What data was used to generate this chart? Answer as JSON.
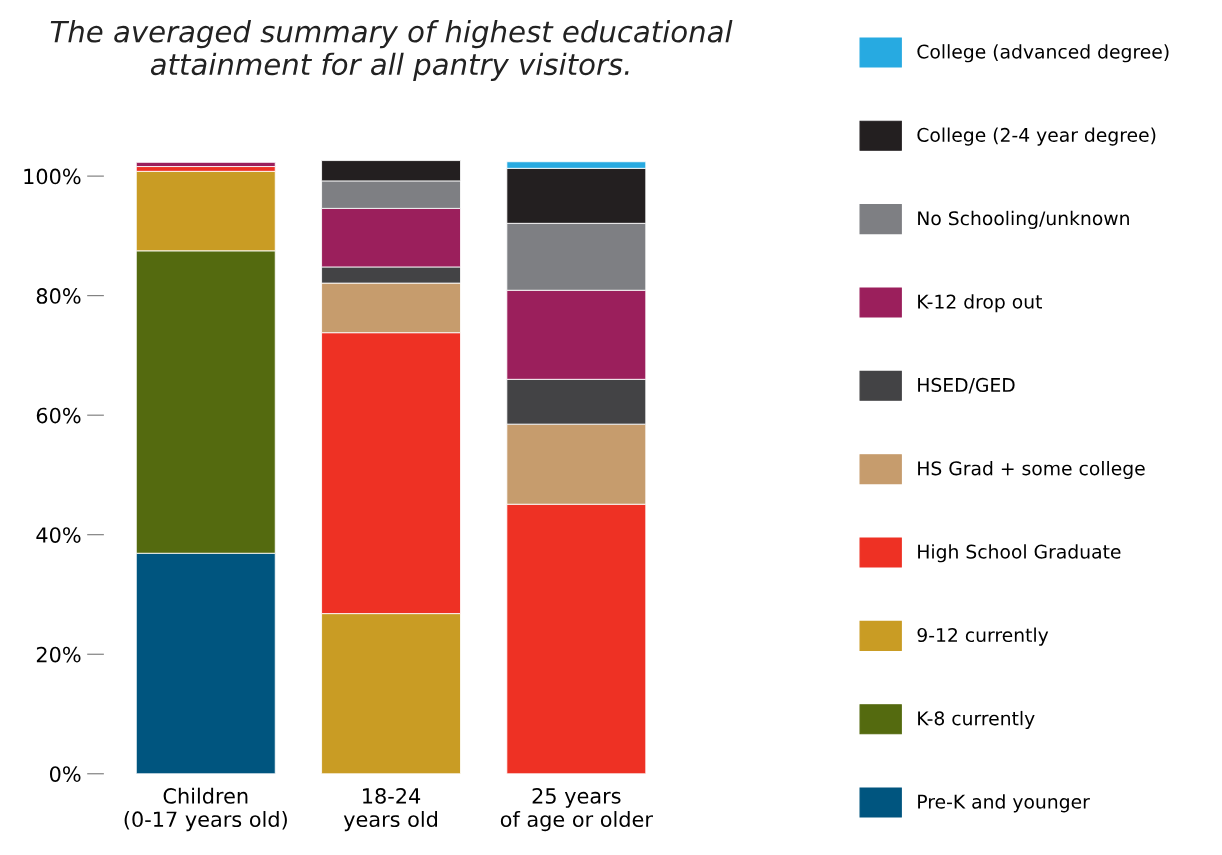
{
  "chart_data": {
    "type": "bar",
    "stacked": true,
    "title": "The averaged summary of highest educational\nattainment for all pantry visitors.",
    "categories": [
      "Children\n(0-17 years old)",
      "18-24\nyears old",
      "25 years\nof age or older"
    ],
    "series": [
      {
        "name": "Pre-K and younger",
        "color": "#00557f",
        "values": [
          36.9,
          null,
          null
        ]
      },
      {
        "name": "K-8 currently",
        "color": "#546a0f",
        "values": [
          50.6,
          null,
          null
        ]
      },
      {
        "name": "9-12 currently",
        "color": "#c99c24",
        "values": [
          13.3,
          26.8,
          null
        ]
      },
      {
        "name": "High School Graduate",
        "color": "#ee3124",
        "values": [
          0.8,
          47.0,
          45.1
        ]
      },
      {
        "name": "HS Grad + some college",
        "color": "#c69c6d",
        "values": [
          null,
          8.3,
          13.4
        ]
      },
      {
        "name": "HSED/GED",
        "color": "#434345",
        "values": [
          null,
          2.7,
          7.5
        ]
      },
      {
        "name": "K-12 drop out",
        "color": "#9b1f5c",
        "values": [
          0.7,
          9.8,
          14.9
        ]
      },
      {
        "name": "No Schooling/unknown",
        "color": "#7e7f83",
        "values": [
          null,
          4.6,
          11.2
        ]
      },
      {
        "name": "College (2-4 year degree)",
        "color": "#231f20",
        "values": [
          null,
          3.4,
          9.2
        ]
      },
      {
        "name": "College (advanced degree)",
        "color": "#27aae1",
        "values": [
          null,
          null,
          1.1
        ]
      }
    ],
    "ylim": [
      0,
      103
    ],
    "yticks": [
      {
        "value": 0,
        "label": "0%"
      },
      {
        "value": 20,
        "label": "20%"
      },
      {
        "value": 40,
        "label": "40%"
      },
      {
        "value": 60,
        "label": "60%"
      },
      {
        "value": 80,
        "label": "80%"
      },
      {
        "value": 100,
        "label": "100%"
      }
    ],
    "grid": false,
    "legend": "right"
  }
}
